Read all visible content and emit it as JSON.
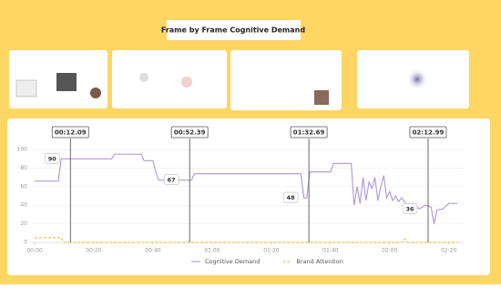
{
  "chart_data": {
    "type": "line",
    "title": "Frame by Frame Cognitive Demand",
    "xlim": [
      0,
      145
    ],
    "ylim": [
      0,
      105
    ],
    "xticks": [
      {
        "value": 0,
        "label": "00:00"
      },
      {
        "value": 20,
        "label": "00:20"
      },
      {
        "value": 40,
        "label": "00:40"
      },
      {
        "value": 60,
        "label": "01:00"
      },
      {
        "value": 80,
        "label": "01:20"
      },
      {
        "value": 100,
        "label": "01:40"
      },
      {
        "value": 120,
        "label": "02:00"
      },
      {
        "value": 140,
        "label": "02:20"
      }
    ],
    "yticks": [
      0,
      20,
      40,
      60,
      80,
      100
    ],
    "grid": true,
    "series": [
      {
        "name": "Cognitive Demand",
        "color": "#b39ddb",
        "x": [
          0,
          8,
          9,
          26,
          27,
          36,
          37,
          40,
          41,
          42,
          53,
          54,
          90,
          91,
          92,
          93,
          100,
          101,
          107,
          108,
          109,
          110,
          111,
          112,
          113,
          114,
          115,
          116,
          117,
          118,
          119,
          120,
          121,
          122,
          123,
          124,
          126,
          128,
          130,
          132,
          134,
          135,
          136,
          138,
          140,
          143
        ],
        "values": [
          66,
          66,
          90,
          90,
          95,
          95,
          88,
          88,
          75,
          67,
          67,
          74,
          74,
          48,
          48,
          76,
          76,
          85,
          85,
          40,
          60,
          42,
          70,
          45,
          65,
          58,
          70,
          45,
          60,
          72,
          48,
          55,
          45,
          50,
          44,
          48,
          40,
          42,
          36,
          40,
          38,
          20,
          35,
          36,
          42,
          42
        ]
      },
      {
        "name": "Brand Attention",
        "color": "#f2c14e",
        "dashed": true,
        "x": [
          0,
          9,
          10,
          124,
          125,
          126,
          143
        ],
        "values": [
          5,
          5,
          0,
          0,
          4,
          0,
          0
        ]
      }
    ],
    "markers": [
      {
        "x": 12.09,
        "label": "00:12.09",
        "value": 90
      },
      {
        "x": 52.39,
        "label": "00:52.39",
        "value": 67
      },
      {
        "x": 92.69,
        "label": "01:32.69",
        "value": 48
      },
      {
        "x": 132.99,
        "label": "02:12.99",
        "value": 36
      }
    ]
  }
}
